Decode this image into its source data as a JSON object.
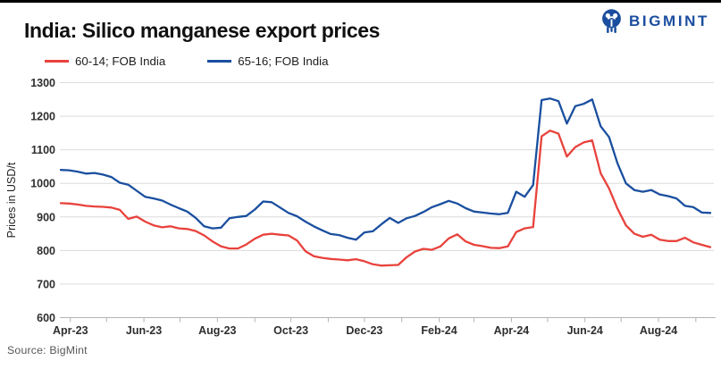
{
  "header": {
    "title": "India: Silico manganese export prices",
    "logo_text": "BIGMINT",
    "brand_color": "#1c4e9f"
  },
  "footer": {
    "source": "Source: BigMint"
  },
  "chart_data": {
    "type": "line",
    "title": "India: Silico manganese export prices",
    "xlabel": "",
    "ylabel": "Prices in USD/t",
    "ylim": [
      600,
      1300
    ],
    "y_ticks": [
      600,
      700,
      800,
      900,
      1000,
      1100,
      1200,
      1300
    ],
    "grid": "horizontal-only",
    "legend_position": "top-left",
    "x_start_date": "2023-03-24",
    "x_interval_days": 7,
    "x_ticks": [
      {
        "date": "2023-04-01",
        "label": "Apr-23"
      },
      {
        "date": "2023-05-01",
        "label": ""
      },
      {
        "date": "2023-06-01",
        "label": "Jun-23"
      },
      {
        "date": "2023-07-01",
        "label": ""
      },
      {
        "date": "2023-08-01",
        "label": "Aug-23"
      },
      {
        "date": "2023-09-01",
        "label": ""
      },
      {
        "date": "2023-10-01",
        "label": "Oct-23"
      },
      {
        "date": "2023-11-01",
        "label": ""
      },
      {
        "date": "2023-12-01",
        "label": "Dec-23"
      },
      {
        "date": "2024-01-01",
        "label": ""
      },
      {
        "date": "2024-02-01",
        "label": "Feb-24"
      },
      {
        "date": "2024-03-01",
        "label": ""
      },
      {
        "date": "2024-04-01",
        "label": "Apr-24"
      },
      {
        "date": "2024-05-01",
        "label": ""
      },
      {
        "date": "2024-06-01",
        "label": "Jun-24"
      },
      {
        "date": "2024-07-01",
        "label": ""
      },
      {
        "date": "2024-08-01",
        "label": "Aug-24"
      },
      {
        "date": "2024-09-01",
        "label": ""
      }
    ],
    "series": [
      {
        "name": "60-14; FOB India",
        "color": "#e8423c",
        "unit": "USD/t",
        "values": [
          941,
          940,
          937,
          933,
          931,
          930,
          928,
          921,
          894,
          901,
          886,
          875,
          869,
          872,
          866,
          864,
          858,
          845,
          827,
          812,
          806,
          806,
          818,
          835,
          847,
          850,
          847,
          845,
          830,
          798,
          783,
          778,
          775,
          773,
          771,
          774,
          768,
          759,
          755,
          756,
          757,
          780,
          797,
          805,
          802,
          812,
          836,
          848,
          827,
          817,
          813,
          808,
          807,
          812,
          855,
          866,
          870,
          1140,
          1157,
          1148,
          1080,
          1108,
          1122,
          1128,
          1030,
          985,
          925,
          875,
          850,
          841,
          847,
          832,
          828,
          828,
          838,
          824,
          817,
          810
        ]
      },
      {
        "name": "65-16; FOB India",
        "color": "#1a4f9f",
        "unit": "USD/t",
        "values": [
          1040,
          1039,
          1035,
          1029,
          1031,
          1026,
          1019,
          1002,
          996,
          978,
          960,
          955,
          949,
          937,
          926,
          916,
          897,
          872,
          866,
          868,
          896,
          900,
          903,
          922,
          946,
          944,
          928,
          912,
          902,
          886,
          872,
          860,
          849,
          846,
          838,
          832,
          854,
          857,
          878,
          897,
          882,
          896,
          903,
          915,
          929,
          938,
          948,
          940,
          926,
          916,
          913,
          910,
          908,
          912,
          975,
          960,
          995,
          1248,
          1253,
          1245,
          1178,
          1230,
          1237,
          1250,
          1170,
          1138,
          1060,
          1000,
          980,
          975,
          980,
          967,
          962,
          955,
          933,
          929,
          913,
          912
        ]
      }
    ]
  }
}
